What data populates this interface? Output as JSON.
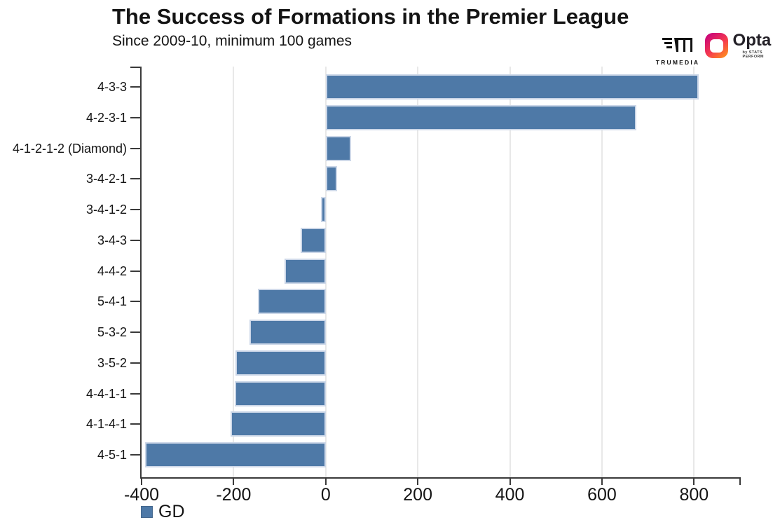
{
  "header": {
    "title": "The Success of Formations in the Premier League",
    "subtitle": "Since 2009-10, minimum 100 games",
    "logos": {
      "trumedia": "TRUMEDIA",
      "opta": "Opta",
      "opta_sub": "by STATS PERFORM"
    }
  },
  "chart_data": {
    "type": "bar",
    "orientation": "horizontal",
    "title": "The Success of Formations in the Premier League",
    "subtitle": "Since 2009-10, minimum 100 games",
    "categories": [
      "4-3-3",
      "4-2-3-1",
      "4-1-2-1-2 (Diamond)",
      "3-4-2-1",
      "3-4-1-2",
      "3-4-3",
      "4-4-2",
      "5-4-1",
      "5-3-2",
      "3-5-2",
      "4-4-1-1",
      "4-1-4-1",
      "4-5-1"
    ],
    "values": [
      810,
      675,
      55,
      24,
      -10,
      -54,
      -90,
      -147,
      -166,
      -196,
      -198,
      -207,
      -393
    ],
    "legend": "GD",
    "legend_position": "bottom-left",
    "xlabel": "",
    "ylabel": "",
    "xlim": [
      -400,
      900
    ],
    "xticks": [
      -400,
      -200,
      0,
      200,
      400,
      600,
      800
    ],
    "grid": true,
    "bar_color": "#4e79a7",
    "bar_stroke": "#ccd7e8",
    "gridline_color": "#e8e8e8",
    "axis_color": "#3a3a3a"
  }
}
